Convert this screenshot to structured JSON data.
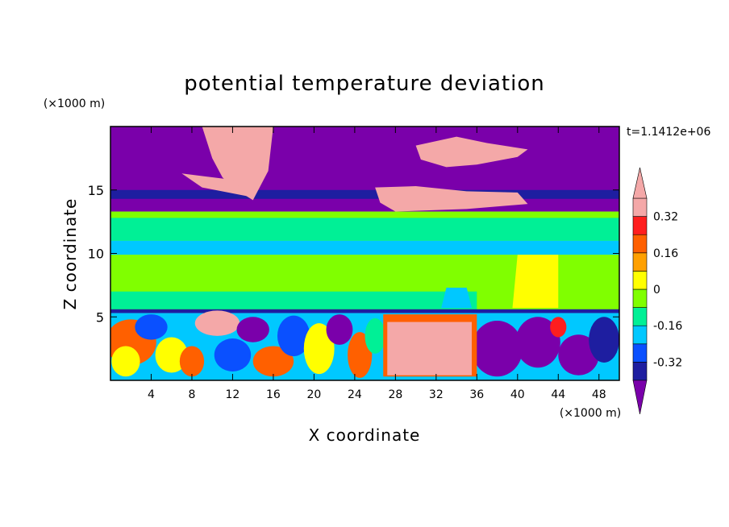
{
  "chart_data": {
    "type": "heatmap",
    "title": "potential temperature deviation",
    "time_label": "t=1.1412e+06",
    "xlabel": "X coordinate",
    "ylabel": "Z coordinate",
    "x_unit": "(×1000 m)",
    "y_unit": "(×1000 m)",
    "xlim": [
      0,
      50
    ],
    "ylim": [
      0,
      20
    ],
    "x_ticks": [
      4,
      8,
      12,
      16,
      20,
      24,
      28,
      32,
      36,
      40,
      44,
      48
    ],
    "y_ticks": [
      5,
      10,
      15
    ],
    "colorbar": {
      "levels": [
        -0.4,
        -0.32,
        -0.24,
        -0.16,
        -0.08,
        0,
        0.08,
        0.16,
        0.24,
        0.32,
        0.4
      ],
      "tick_labels": [
        "0.32",
        "0.16",
        "0",
        "-0.16",
        "-0.32"
      ],
      "tick_values": [
        0.32,
        0.16,
        0,
        -0.16,
        -0.32
      ],
      "colors": [
        "#7a00aa",
        "#1e1ea0",
        "#0a50ff",
        "#00c8ff",
        "#00f096",
        "#80ff00",
        "#ffff00",
        "#ffa000",
        "#ff6000",
        "#ff1e1e",
        "#f4a8a8"
      ],
      "extend": "both"
    },
    "layers": [
      {
        "z": [
          13.3,
          20
        ],
        "level": "#7a00aa"
      },
      {
        "z": [
          14.3,
          15.0
        ],
        "level": "#1e1ea0"
      },
      {
        "z": [
          5.5,
          13.3
        ],
        "level": "#80ff00"
      },
      {
        "z": [
          0,
          5.5
        ],
        "level": "turbulent"
      }
    ]
  }
}
